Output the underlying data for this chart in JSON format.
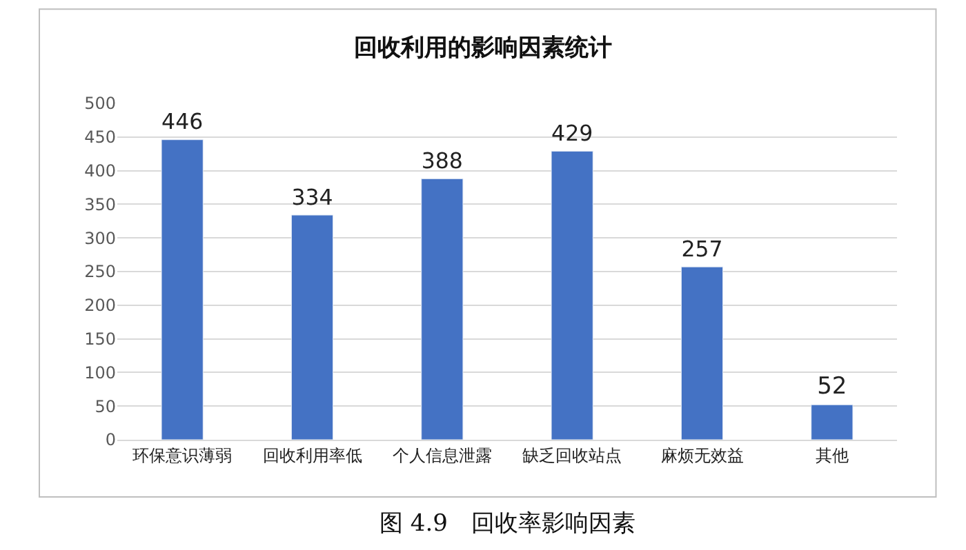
{
  "chart_data": {
    "type": "bar",
    "title": "回收利用的影响因素统计",
    "categories": [
      "环保意识薄弱",
      "回收利用率低",
      "个人信息泄露",
      "缺乏回收站点",
      "麻烦无效益",
      "其他"
    ],
    "values": [
      446,
      334,
      388,
      429,
      257,
      52
    ],
    "color": "#4472c4",
    "ylim": [
      0,
      500
    ],
    "yticks": [
      0,
      50,
      100,
      150,
      200,
      250,
      300,
      350,
      400,
      450,
      500
    ],
    "grid": "y",
    "data_labels": true,
    "legend": false,
    "annotations": [
      "图 4.9　回收率影响因素"
    ]
  }
}
